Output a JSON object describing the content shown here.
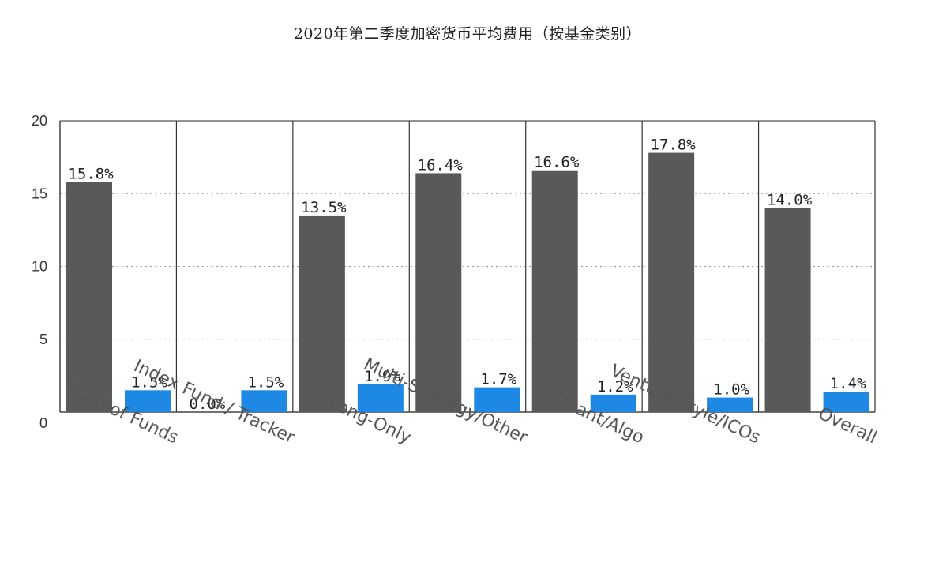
{
  "chart_data": {
    "type": "bar",
    "title": "2020年第二季度加密货币平均费用（按基金类别）",
    "xlabel": "",
    "ylabel": "",
    "ylim": [
      0,
      20
    ],
    "yticks": [
      0,
      5,
      10,
      15,
      20
    ],
    "grid": true,
    "legend": "none",
    "categories": [
      "Fund of Funds",
      "Index Fund / Tracker",
      "Long-Only",
      "Multi-Strategy/Other",
      "Quant/Algo",
      "Venture-Style/ICOs",
      "Overall"
    ],
    "series": [
      {
        "color": "#595959",
        "values": [
          15.8,
          0.0,
          13.5,
          16.4,
          16.6,
          17.8,
          14.0
        ],
        "labels": [
          "15.8%",
          "0.0%",
          "13.5%",
          "16.4%",
          "16.6%",
          "17.8%",
          "14.0%"
        ]
      },
      {
        "color": "#1e88e5",
        "values": [
          1.5,
          1.5,
          1.9,
          1.7,
          1.2,
          1.0,
          1.4
        ],
        "labels": [
          "1.5%",
          "1.5%",
          "1.9%",
          "1.7%",
          "1.2%",
          "1.0%",
          "1.4%"
        ]
      }
    ]
  }
}
